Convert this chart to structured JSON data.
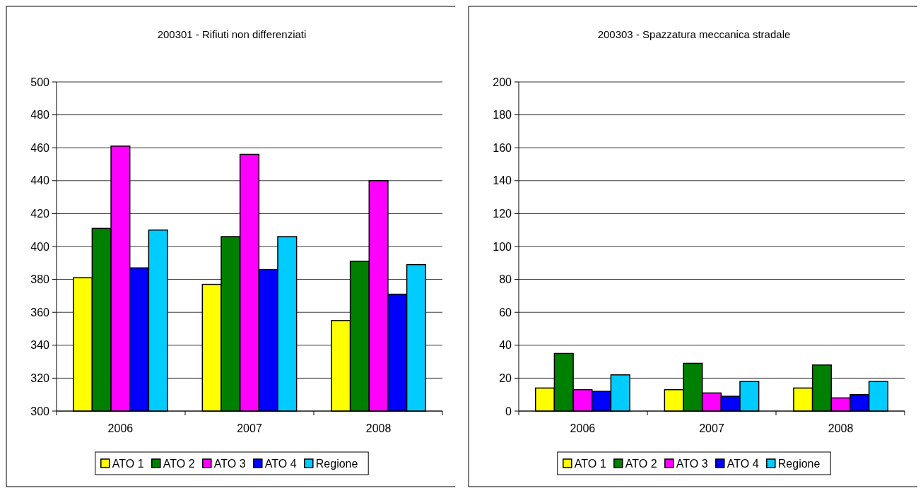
{
  "chart_data": [
    {
      "type": "bar",
      "title": "200301 - Rifiuti non differenziati",
      "categories": [
        "2006",
        "2007",
        "2008"
      ],
      "ylim": [
        300,
        500
      ],
      "yticks": [
        300,
        320,
        340,
        360,
        380,
        400,
        420,
        440,
        460,
        480,
        500
      ],
      "grid": "y",
      "legend": "bottom",
      "series": [
        {
          "name": "ATO 1",
          "color": "#ffff00",
          "values": [
            381,
            377,
            355
          ]
        },
        {
          "name": "ATO 2",
          "color": "#008000",
          "values": [
            411,
            406,
            391
          ]
        },
        {
          "name": "ATO 3",
          "color": "#ff00ff",
          "values": [
            461,
            456,
            440
          ]
        },
        {
          "name": "ATO 4",
          "color": "#0000ff",
          "values": [
            387,
            386,
            371
          ]
        },
        {
          "name": "Regione",
          "color": "#00ccff",
          "values": [
            410,
            406,
            389
          ]
        }
      ]
    },
    {
      "type": "bar",
      "title": "200303 - Spazzatura meccanica stradale",
      "categories": [
        "2006",
        "2007",
        "2008"
      ],
      "ylim": [
        0,
        200
      ],
      "yticks": [
        0,
        20,
        40,
        60,
        80,
        100,
        120,
        140,
        160,
        180,
        200
      ],
      "grid": "y",
      "legend": "bottom",
      "series": [
        {
          "name": "ATO 1",
          "color": "#ffff00",
          "values": [
            14,
            13,
            14
          ]
        },
        {
          "name": "ATO 2",
          "color": "#008000",
          "values": [
            35,
            29,
            28
          ]
        },
        {
          "name": "ATO 3",
          "color": "#ff00ff",
          "values": [
            13,
            11,
            8
          ]
        },
        {
          "name": "ATO 4",
          "color": "#0000ff",
          "values": [
            12,
            9,
            10
          ]
        },
        {
          "name": "Regione",
          "color": "#00ccff",
          "values": [
            22,
            18,
            18
          ]
        }
      ]
    }
  ]
}
